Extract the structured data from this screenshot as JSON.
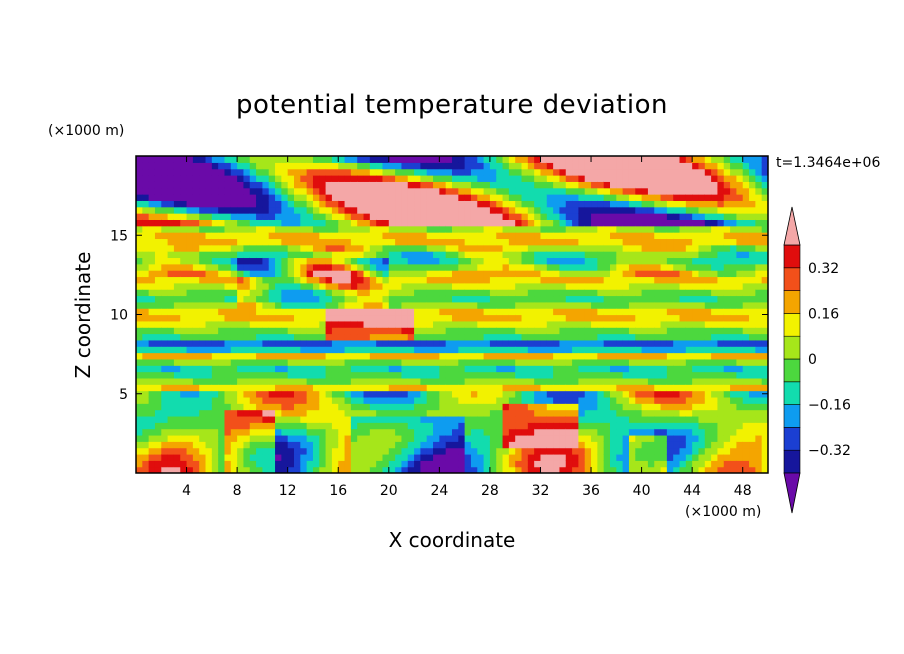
{
  "chart_data": {
    "type": "heatmap",
    "title": "potential temperature deviation",
    "xlabel": "X coordinate",
    "ylabel": "Z coordinate",
    "x_units": "(×1000 m)",
    "y_units": "(×1000 m)",
    "time_label": "t=1.3464e+06",
    "xlim": [
      0,
      50
    ],
    "ylim": [
      0,
      20
    ],
    "x_ticks": [
      4,
      8,
      12,
      16,
      20,
      24,
      28,
      32,
      36,
      40,
      44,
      48
    ],
    "y_ticks": [
      5,
      10,
      15
    ],
    "colorbar": {
      "levels": [
        -0.4,
        -0.32,
        -0.24,
        -0.16,
        -0.08,
        0,
        0.08,
        0.16,
        0.24,
        0.32,
        0.4
      ],
      "tick_labels": [
        "0.32",
        "0.16",
        "0",
        "−0.16",
        "−0.32"
      ],
      "tick_values": [
        0.32,
        0.16,
        0,
        -0.16,
        -0.32
      ],
      "colors": [
        "#6a0aa8",
        "#16169c",
        "#1b3fd2",
        "#0e9cf0",
        "#12dcae",
        "#4cd83e",
        "#a6e61a",
        "#f2f200",
        "#f4a500",
        "#f2501a",
        "#e00d0d",
        "#f4a7a7"
      ],
      "extend": "both"
    },
    "grid": false
  }
}
